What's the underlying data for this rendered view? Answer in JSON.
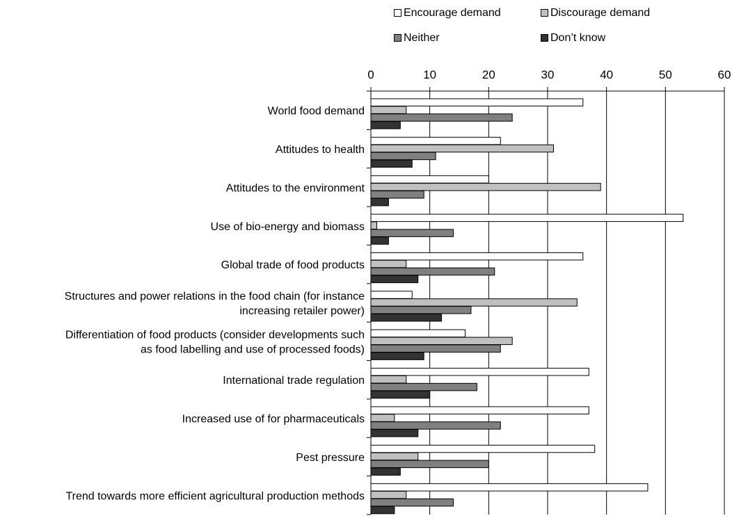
{
  "chart_data": {
    "type": "bar",
    "orientation": "horizontal",
    "categories": [
      [
        "World food demand"
      ],
      [
        "Attitudes to health"
      ],
      [
        "Attitudes to the environment"
      ],
      [
        "Use of bio-energy and biomass"
      ],
      [
        "Global trade of food products"
      ],
      [
        "Structures and power relations in the food chain (for instance",
        "increasing retailer power)"
      ],
      [
        "Differentiation of food products (consider developments such",
        "as food labelling and use of processed foods)"
      ],
      [
        "International trade regulation"
      ],
      [
        "Increased use of for pharmaceuticals"
      ],
      [
        "Pest pressure"
      ],
      [
        "Trend towards more efficient agricultural production methods"
      ]
    ],
    "series": [
      {
        "name": "Encourage demand",
        "color": "#ffffff",
        "values": [
          36,
          22,
          20,
          53,
          36,
          7,
          16,
          37,
          37,
          38,
          47
        ]
      },
      {
        "name": "Discourage demand",
        "color": "#c0c0c0",
        "values": [
          6,
          31,
          39,
          1,
          6,
          35,
          24,
          6,
          4,
          8,
          6
        ]
      },
      {
        "name": "Neither",
        "color": "#808080",
        "values": [
          24,
          11,
          9,
          14,
          21,
          17,
          22,
          18,
          22,
          20,
          14
        ]
      },
      {
        "name": "Don’t know",
        "color": "#333333",
        "values": [
          5,
          7,
          3,
          3,
          8,
          12,
          9,
          10,
          8,
          5,
          4
        ]
      }
    ],
    "xlim": [
      0,
      60
    ],
    "xticks": [
      "0",
      "10",
      "20",
      "30",
      "40",
      "50",
      "60"
    ],
    "x_axis_position": "top",
    "grid": "vertical",
    "legend_position": "top-right"
  }
}
